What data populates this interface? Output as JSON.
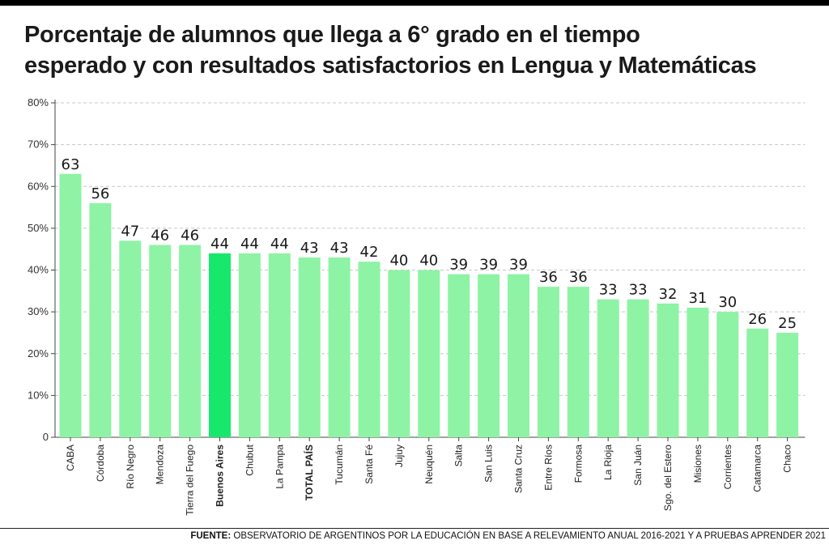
{
  "title_lines": [
    "Porcentaje de alumnos que llega a 6° grado en el tiempo",
    "esperado y con resultados satisfactorios en Lengua y Matemáticas"
  ],
  "source": {
    "label": "FUENTE:",
    "text": "OBSERVATORIO DE ARGENTINOS POR LA EDUCACIÓN EN BASE A RELEVAMIENTO ANUAL 2016-2021 Y A PRUEBAS APRENDER 2021"
  },
  "colors": {
    "bar": "#8ef3a5",
    "highlight": "#17e86b",
    "grid": "#c8c8c8",
    "text": "#1a1a1a"
  },
  "chart_data": {
    "type": "bar",
    "title": "Porcentaje de alumnos que llega a 6° grado en el tiempo esperado y con resultados satisfactorios en Lengua y Matemáticas",
    "categories": [
      "CABA",
      "Córdoba",
      "Río Negro",
      "Mendoza",
      "Tierra del Fuego",
      "Buenos Aires",
      "Chubut",
      "La Pampa",
      "TOTAL PAÍS",
      "Tucumán",
      "Santa Fé",
      "Jujuy",
      "Neuquén",
      "Salta",
      "San Luis",
      "Santa Cruz",
      "Entre Ríos",
      "Formosa",
      "La Rioja",
      "San Juán",
      "Sgo. del Estero",
      "Misiones",
      "Corrientes",
      "Catamarca",
      "Chaco"
    ],
    "values": [
      63,
      56,
      47,
      46,
      46,
      44,
      44,
      44,
      43,
      43,
      42,
      40,
      40,
      39,
      39,
      39,
      36,
      36,
      33,
      33,
      32,
      31,
      30,
      26,
      25
    ],
    "value_labels": [
      "63",
      "56",
      "47",
      "46",
      "46",
      "44",
      "44",
      "44",
      "43",
      "43",
      "42",
      "40",
      "40",
      "39",
      "39",
      "39",
      "36",
      "36",
      "33",
      "33",
      "32",
      "31",
      "30",
      "26",
      "25"
    ],
    "highlight": "Buenos Aires",
    "bold_categories": [
      "Buenos Aires",
      "TOTAL PAÍS"
    ],
    "ylim": [
      0,
      80
    ],
    "yticks": [
      0,
      10,
      20,
      30,
      40,
      50,
      60,
      70,
      80
    ],
    "ytick_labels": [
      "0",
      "10%",
      "20%",
      "30%",
      "40%",
      "50%",
      "60%",
      "70%",
      "80%"
    ],
    "grid": true,
    "xlabel": "",
    "ylabel": ""
  }
}
